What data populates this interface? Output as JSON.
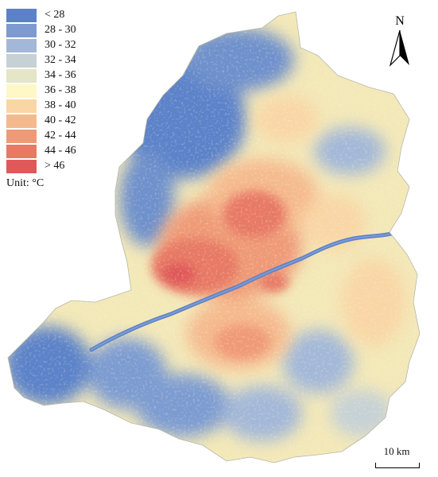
{
  "legend": {
    "classes": [
      {
        "label": "< 28",
        "color": "#5b82c9"
      },
      {
        "label": "28 - 30",
        "color": "#7d9bd1"
      },
      {
        "label": "30 - 32",
        "color": "#a3b8d8"
      },
      {
        "label": "32 - 34",
        "color": "#c6d1d5"
      },
      {
        "label": "34 - 36",
        "color": "#e4e6c6"
      },
      {
        "label": "36 - 38",
        "color": "#fdf8c6"
      },
      {
        "label": "38 - 40",
        "color": "#f9d6a5"
      },
      {
        "label": "40 - 42",
        "color": "#f5b98e"
      },
      {
        "label": "42 - 44",
        "color": "#ef9a77"
      },
      {
        "label": "44 - 46",
        "color": "#e77965"
      },
      {
        "label": "> 46",
        "color": "#e0595a"
      }
    ],
    "unit": "Unit: °C"
  },
  "north_arrow": {
    "letter": "N",
    "icon": "north-arrow-icon"
  },
  "scale_bar": {
    "label": "10 km"
  },
  "map": {
    "title": "",
    "river_color": "#5b82c9"
  }
}
